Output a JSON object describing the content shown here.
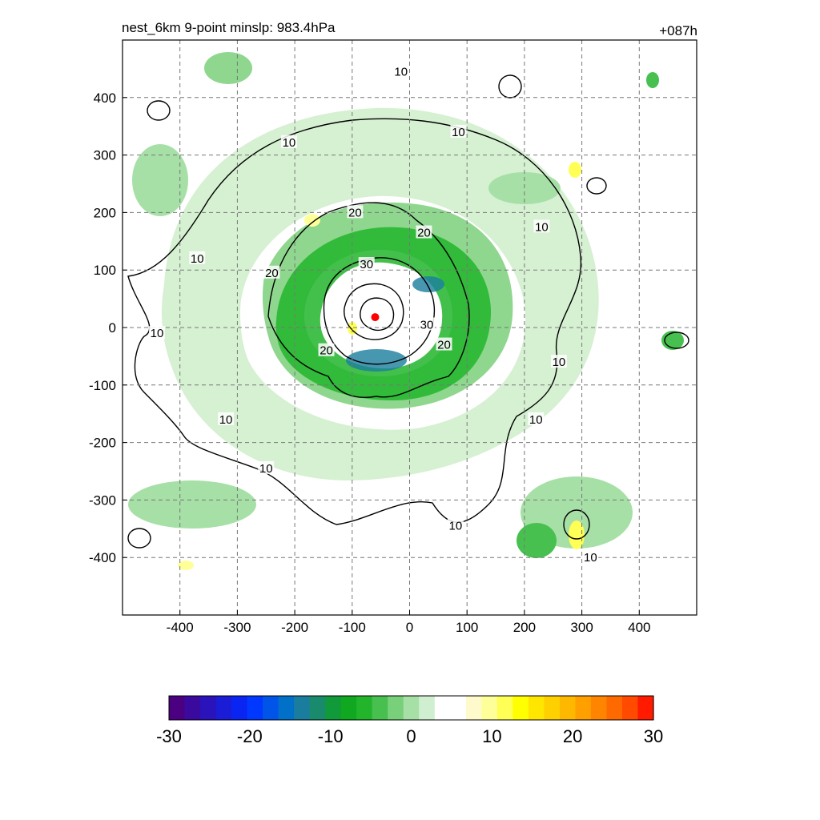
{
  "header": {
    "title": "nest_6km  9-point minslp: 983.4hPa",
    "time_label": "+087h"
  },
  "chart_data": {
    "type": "heatmap",
    "title": "nest_6km  9-point minslp: 983.4hPa",
    "xlabel": "",
    "ylabel": "",
    "xlim": [
      -500,
      500
    ],
    "ylim": [
      -500,
      500
    ],
    "xticks": [
      -400,
      -300,
      -200,
      -100,
      0,
      100,
      200,
      300,
      400
    ],
    "yticks": [
      -400,
      -300,
      -200,
      -100,
      0,
      100,
      200,
      300,
      400
    ],
    "grid": true,
    "center_marker": {
      "x": -60,
      "y": 18,
      "color": "#ff0000"
    },
    "contour_levels": [
      10,
      20,
      30
    ],
    "contour_labels": [
      {
        "text": "10",
        "x": -15,
        "y": 445
      },
      {
        "text": "10",
        "x": 85,
        "y": 340
      },
      {
        "text": "10",
        "x": -210,
        "y": 322
      },
      {
        "text": "10",
        "x": 230,
        "y": 175
      },
      {
        "text": "10",
        "x": -370,
        "y": 120
      },
      {
        "text": "10",
        "x": -440,
        "y": -10
      },
      {
        "text": "10",
        "x": 260,
        "y": -60
      },
      {
        "text": "10",
        "x": 220,
        "y": -160
      },
      {
        "text": "10",
        "x": -320,
        "y": -160
      },
      {
        "text": "10",
        "x": -250,
        "y": -245
      },
      {
        "text": "10",
        "x": 80,
        "y": -345
      },
      {
        "text": "10",
        "x": 315,
        "y": -400
      },
      {
        "text": "20",
        "x": -95,
        "y": 200
      },
      {
        "text": "20",
        "x": 25,
        "y": 165
      },
      {
        "text": "20",
        "x": -240,
        "y": 95
      },
      {
        "text": "20",
        "x": -145,
        "y": -40
      },
      {
        "text": "20",
        "x": 60,
        "y": -30
      },
      {
        "text": "30",
        "x": -75,
        "y": 110
      },
      {
        "text": "30",
        "x": 30,
        "y": 5
      }
    ],
    "colorbar": {
      "ticks": [
        "-30",
        "-20",
        "-10",
        "0",
        "10",
        "20",
        "30"
      ],
      "min": -30,
      "max": 30,
      "colors": [
        "#4b0082",
        "#3a0a9e",
        "#2a13ba",
        "#1a1cd6",
        "#0a25f2",
        "#0038ff",
        "#0055e8",
        "#0070c8",
        "#1a7d9e",
        "#1a8a6c",
        "#119a3a",
        "#10a820",
        "#22b52c",
        "#48c050",
        "#78d07a",
        "#a6e0a6",
        "#d0efd0",
        "#ffffff",
        "#ffffff",
        "#fffacc",
        "#ffff99",
        "#ffff55",
        "#ffff00",
        "#ffe600",
        "#ffd000",
        "#ffb800",
        "#ff9f00",
        "#ff8500",
        "#ff6a00",
        "#ff4a00",
        "#ff1a00"
      ]
    }
  }
}
